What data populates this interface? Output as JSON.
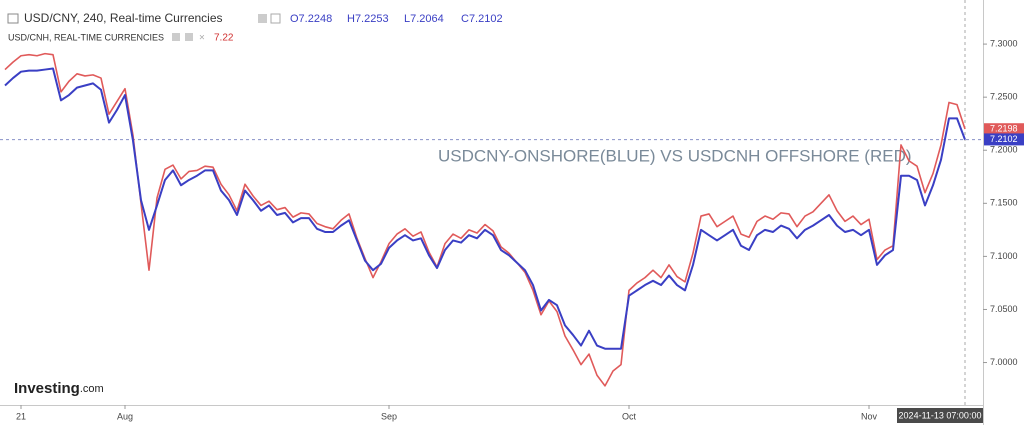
{
  "chart_data": {
    "type": "line",
    "annotation": "USDCNY-ONSHORE(BLUE) VS USDCNH OFFSHORE (RED)",
    "watermark": [
      "Investing",
      ".com"
    ],
    "cursor_label": "2024-11-13 07:00:00",
    "categories": [
      null,
      null,
      "21",
      null,
      null,
      null,
      null,
      null,
      null,
      null,
      null,
      null,
      null,
      null,
      null,
      "Aug",
      null,
      null,
      null,
      null,
      null,
      null,
      null,
      null,
      null,
      null,
      null,
      null,
      null,
      null,
      null,
      null,
      null,
      null,
      null,
      null,
      null,
      null,
      null,
      null,
      null,
      null,
      null,
      null,
      null,
      null,
      null,
      null,
      "Sep",
      null,
      null,
      null,
      null,
      null,
      null,
      null,
      null,
      null,
      null,
      null,
      null,
      null,
      null,
      null,
      null,
      null,
      null,
      null,
      null,
      null,
      null,
      null,
      null,
      null,
      null,
      null,
      null,
      null,
      "Oct",
      null,
      null,
      null,
      null,
      null,
      null,
      null,
      null,
      null,
      null,
      null,
      null,
      null,
      null,
      null,
      null,
      null,
      null,
      null,
      null,
      null,
      null,
      null,
      null,
      null,
      null,
      null,
      null,
      null,
      "Nov",
      null,
      null,
      null,
      null,
      null,
      null,
      null,
      null,
      null,
      null,
      null,
      null
    ],
    "series": [
      {
        "name": "USD/CNY, 240, Real-time Currencies",
        "color": "#3a3fc4",
        "ohlc": [
          "O7.2248",
          "H7.2253",
          "L7.2064",
          "C7.2102"
        ],
        "last_price": 7.2102,
        "values": [
          7.261,
          7.268,
          7.274,
          7.275,
          7.275,
          7.276,
          7.277,
          7.247,
          7.252,
          7.259,
          7.261,
          7.263,
          7.257,
          7.226,
          7.238,
          7.252,
          7.209,
          7.153,
          7.125,
          7.148,
          7.172,
          7.181,
          7.167,
          7.172,
          7.176,
          7.181,
          7.181,
          7.162,
          7.153,
          7.139,
          7.162,
          7.153,
          7.143,
          7.148,
          7.139,
          7.141,
          7.132,
          7.136,
          7.136,
          7.126,
          7.123,
          7.123,
          7.129,
          7.134,
          7.115,
          7.096,
          7.087,
          7.093,
          7.108,
          7.115,
          7.12,
          7.115,
          7.117,
          7.101,
          7.089,
          7.106,
          7.115,
          7.113,
          7.12,
          7.117,
          7.125,
          7.12,
          7.106,
          7.101,
          7.094,
          7.087,
          7.073,
          7.049,
          7.059,
          7.054,
          7.035,
          7.026,
          7.016,
          7.03,
          7.016,
          7.013,
          7.013,
          7.013,
          7.063,
          7.068,
          7.073,
          7.077,
          7.073,
          7.082,
          7.073,
          7.068,
          7.092,
          7.125,
          7.12,
          7.115,
          7.12,
          7.125,
          7.11,
          7.106,
          7.12,
          7.125,
          7.123,
          7.129,
          7.126,
          7.117,
          7.125,
          7.129,
          7.134,
          7.139,
          7.129,
          7.123,
          7.125,
          7.12,
          7.125,
          7.092,
          7.101,
          7.106,
          7.176,
          7.176,
          7.172,
          7.148,
          7.167,
          7.191,
          7.23,
          7.23,
          7.21
        ]
      },
      {
        "name": "USD/CNH, REAL-TIME CURRENCIES",
        "color": "#e05a5a",
        "legend_value": 7.22,
        "last_price": 7.2198,
        "values": [
          7.276,
          7.283,
          7.289,
          7.29,
          7.289,
          7.291,
          7.29,
          7.255,
          7.265,
          7.272,
          7.27,
          7.271,
          7.268,
          7.234,
          7.246,
          7.258,
          7.214,
          7.15,
          7.087,
          7.155,
          7.182,
          7.186,
          7.173,
          7.18,
          7.181,
          7.185,
          7.184,
          7.168,
          7.158,
          7.143,
          7.168,
          7.157,
          7.148,
          7.152,
          7.144,
          7.146,
          7.137,
          7.141,
          7.14,
          7.131,
          7.128,
          7.126,
          7.134,
          7.14,
          7.117,
          7.098,
          7.08,
          7.095,
          7.112,
          7.121,
          7.126,
          7.119,
          7.123,
          7.104,
          7.09,
          7.112,
          7.121,
          7.117,
          7.125,
          7.122,
          7.13,
          7.124,
          7.109,
          7.103,
          7.094,
          7.085,
          7.068,
          7.045,
          7.058,
          7.048,
          7.025,
          7.012,
          6.998,
          7.008,
          6.988,
          6.978,
          6.992,
          6.998,
          7.068,
          7.075,
          7.08,
          7.087,
          7.08,
          7.092,
          7.081,
          7.076,
          7.103,
          7.138,
          7.14,
          7.128,
          7.133,
          7.138,
          7.121,
          7.118,
          7.133,
          7.138,
          7.135,
          7.141,
          7.14,
          7.128,
          7.138,
          7.142,
          7.15,
          7.158,
          7.143,
          7.133,
          7.138,
          7.13,
          7.135,
          7.097,
          7.106,
          7.11,
          7.205,
          7.19,
          7.185,
          7.16,
          7.178,
          7.205,
          7.245,
          7.243,
          7.22
        ]
      }
    ],
    "ylim": [
      6.96,
      7.334
    ],
    "yticks": [
      {
        "value": 7.0,
        "label": "7.0000"
      },
      {
        "value": 7.05,
        "label": "7.0500"
      },
      {
        "value": 7.1,
        "label": "7.1000"
      },
      {
        "value": 7.15,
        "label": "7.1500"
      },
      {
        "value": 7.2,
        "label": "7.2000"
      },
      {
        "value": 7.25,
        "label": "7.2500"
      },
      {
        "value": 7.3,
        "label": "7.3000"
      }
    ]
  }
}
